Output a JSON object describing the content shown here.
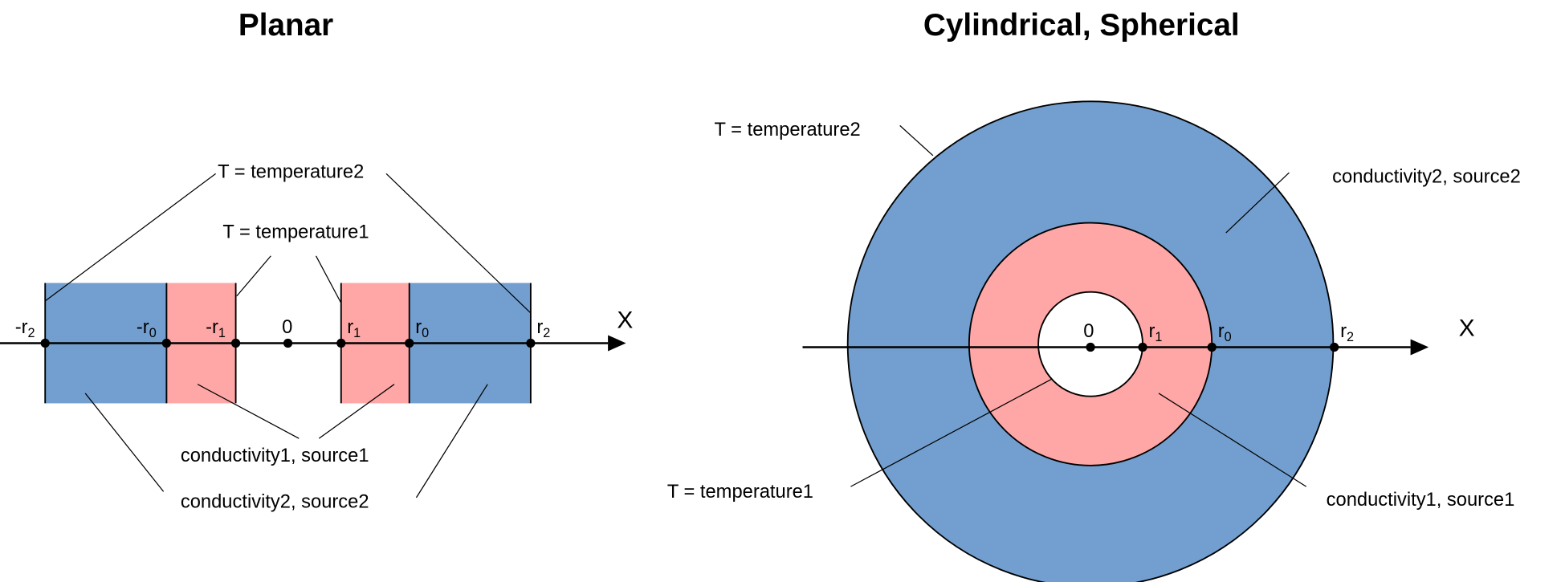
{
  "colors": {
    "outer_region": "#729fcf",
    "inner_region": "#ffa6a6",
    "hole": "#ffffff"
  },
  "planar": {
    "title": "Planar",
    "axis_label": "X",
    "points": [
      {
        "label": "-r",
        "sub": "2"
      },
      {
        "label": "-r",
        "sub": "0"
      },
      {
        "label": "-r",
        "sub": "1"
      },
      {
        "label": "0",
        "sub": ""
      },
      {
        "label": "r",
        "sub": "1"
      },
      {
        "label": "r",
        "sub": "0"
      },
      {
        "label": "r",
        "sub": "2"
      }
    ],
    "callouts": {
      "temperature2": "T = temperature2",
      "temperature1": "T = temperature1",
      "region1": "conductivity1, source1",
      "region2": "conductivity2, source2"
    }
  },
  "radial": {
    "title": "Cylindrical, Spherical",
    "axis_label": "X",
    "points": [
      {
        "label": "0",
        "sub": ""
      },
      {
        "label": "r",
        "sub": "1"
      },
      {
        "label": "r",
        "sub": "0"
      },
      {
        "label": "r",
        "sub": "2"
      }
    ],
    "callouts": {
      "temperature2": "T = temperature2",
      "temperature1": "T = temperature1",
      "region1": "conductivity1, source1",
      "region2": "conductivity2, source2"
    }
  }
}
